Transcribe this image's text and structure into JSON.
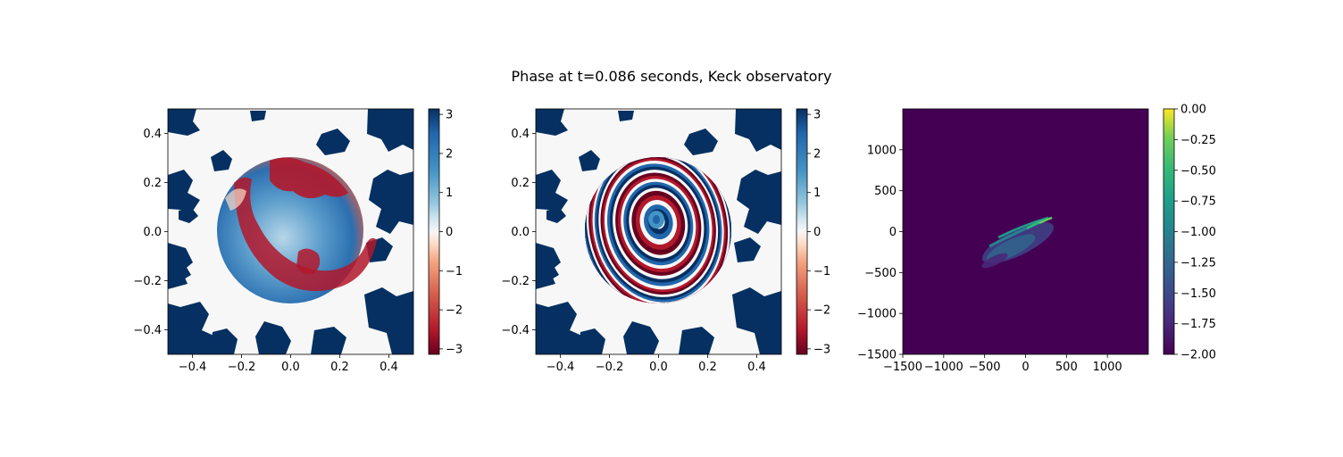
{
  "figure": {
    "title": "Phase at t=0.086 seconds, Keck observatory"
  },
  "colors": {
    "rdbu_low": "#67001f",
    "rdbu_mid": "#f7f7f7",
    "rdbu_high": "#053061",
    "viridis_low": "#440154",
    "viridis_high": "#fde725",
    "background": "#ffffff"
  },
  "chart_data": [
    {
      "type": "heatmap",
      "name": "phase-screen-turbulent",
      "title": "",
      "xlabel": "",
      "ylabel": "",
      "colormap": "RdBu",
      "xlim": [
        -0.5,
        0.5
      ],
      "ylim": [
        -0.5,
        0.5
      ],
      "xticks": [
        "−0.4",
        "−0.2",
        "0.0",
        "0.2",
        "0.4"
      ],
      "xtick_values": [
        -0.4,
        -0.2,
        0.0,
        0.2,
        0.4
      ],
      "yticks": [
        "−0.4",
        "−0.2",
        "0.0",
        "0.2",
        "0.4"
      ],
      "ytick_values": [
        -0.4,
        -0.2,
        0.0,
        0.2,
        0.4
      ],
      "aperture_radius": 0.3,
      "colorbar": {
        "range": [
          -3.14,
          3.14
        ],
        "ticks": [
          "−3",
          "−2",
          "−1",
          "0",
          "1",
          "2",
          "3"
        ],
        "tick_values": [
          -3,
          -2,
          -1,
          0,
          1,
          2,
          3
        ]
      }
    },
    {
      "type": "heatmap",
      "name": "phase-screen-wrapped-rings",
      "title": "",
      "xlabel": "",
      "ylabel": "",
      "colormap": "RdBu",
      "xlim": [
        -0.5,
        0.5
      ],
      "ylim": [
        -0.5,
        0.5
      ],
      "xticks": [
        "−0.4",
        "−0.2",
        "0.0",
        "0.2",
        "0.4"
      ],
      "xtick_values": [
        -0.4,
        -0.2,
        0.0,
        0.2,
        0.4
      ],
      "yticks": [
        "−0.4",
        "−0.2",
        "0.0",
        "0.2",
        "0.4"
      ],
      "ytick_values": [
        -0.4,
        -0.2,
        0.0,
        0.2,
        0.4
      ],
      "aperture_radius": 0.3,
      "colorbar": {
        "range": [
          -3.14,
          3.14
        ],
        "ticks": [
          "−3",
          "−2",
          "−1",
          "0",
          "1",
          "2",
          "3"
        ],
        "tick_values": [
          -3,
          -2,
          -1,
          0,
          1,
          2,
          3
        ]
      }
    },
    {
      "type": "heatmap",
      "name": "psf-log-intensity",
      "title": "",
      "xlabel": "",
      "ylabel": "",
      "colormap": "viridis",
      "xlim": [
        -1500,
        1500
      ],
      "ylim": [
        -1500,
        1500
      ],
      "xticks": [
        "−1500",
        "−1000",
        "−500",
        "0",
        "500",
        "1000"
      ],
      "xtick_values": [
        -1500,
        -1000,
        -500,
        0,
        500,
        1000
      ],
      "yticks": [
        "−1500",
        "−1000",
        "−500",
        "0",
        "500",
        "1000"
      ],
      "ytick_values": [
        -1500,
        -1000,
        -500,
        0,
        500,
        1000
      ],
      "colorbar": {
        "range": [
          -2.0,
          0.0
        ],
        "ticks": [
          "−2.00",
          "−1.75",
          "−1.50",
          "−1.25",
          "−1.00",
          "−0.75",
          "−0.50",
          "−0.25",
          "0.00"
        ],
        "tick_values": [
          -2.0,
          -1.75,
          -1.5,
          -1.25,
          -1.0,
          -0.75,
          -0.5,
          -0.25,
          0.0
        ]
      }
    }
  ]
}
